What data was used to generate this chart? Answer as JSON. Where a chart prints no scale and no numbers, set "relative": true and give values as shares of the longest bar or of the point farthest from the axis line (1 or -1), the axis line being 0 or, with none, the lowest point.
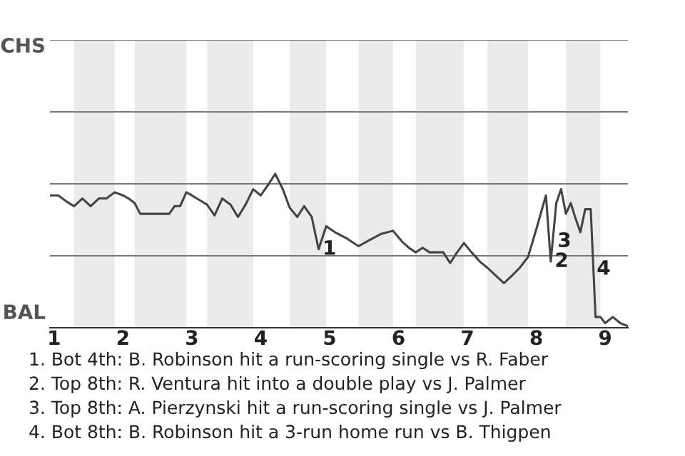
{
  "chart_data": {
    "type": "line",
    "relative": true,
    "x": [
      0.94,
      1.06,
      1.18,
      1.29,
      1.41,
      1.53,
      1.65,
      1.76,
      1.88,
      2,
      2.08,
      2.17,
      2.25,
      2.33,
      2.42,
      2.5,
      2.58,
      2.67,
      2.75,
      2.83,
      2.92,
      3,
      3.11,
      3.22,
      3.33,
      3.44,
      3.56,
      3.67,
      3.78,
      3.89,
      4,
      4.11,
      4.21,
      4.32,
      4.42,
      4.53,
      4.63,
      4.74,
      4.84,
      4.95,
      5.08,
      5.25,
      5.42,
      5.58,
      5.75,
      5.92,
      6.05,
      6.15,
      6.25,
      6.35,
      6.45,
      6.55,
      6.65,
      6.75,
      6.85,
      6.95,
      7.06,
      7.18,
      7.29,
      7.41,
      7.53,
      7.65,
      7.76,
      7.88,
      8,
      8.07,
      8.14,
      8.21,
      8.29,
      8.36,
      8.43,
      8.5,
      8.57,
      8.64,
      8.71,
      8.79,
      8.86,
      8.93,
      9,
      9.11,
      9.22,
      9.33
    ],
    "series": [
      {
        "color": "#444444",
        "values": [
          0.86,
          0.86,
          0.82,
          0.79,
          0.84,
          0.79,
          0.84,
          0.84,
          0.88,
          0.86,
          0.84,
          0.81,
          0.74,
          0.74,
          0.74,
          0.74,
          0.74,
          0.74,
          0.79,
          0.79,
          0.88,
          0.86,
          0.83,
          0.8,
          0.73,
          0.84,
          0.8,
          0.72,
          0.8,
          0.9,
          0.86,
          0.93,
          1,
          0.9,
          0.78,
          0.72,
          0.79,
          0.72,
          0.51,
          0.66,
          0.62,
          0.58,
          0.53,
          0.57,
          0.61,
          0.63,
          0.56,
          0.52,
          0.49,
          0.52,
          0.49,
          0.49,
          0.49,
          0.42,
          0.49,
          0.55,
          0.49,
          0.43,
          0.39,
          0.34,
          0.29,
          0.34,
          0.39,
          0.46,
          0.64,
          0.75,
          0.86,
          0.43,
          0.81,
          0.9,
          0.74,
          0.81,
          0.71,
          0.62,
          0.77,
          0.77,
          0.07,
          0.07,
          0.03,
          0.07,
          0.03,
          0.01
        ]
      }
    ],
    "xlim": [
      0.94,
      9.33
    ],
    "xticks": [
      1,
      2,
      3,
      4,
      5,
      6,
      7,
      8,
      9
    ],
    "ref_lines": [
      {
        "axis": "y",
        "value": 0.4675,
        "color": "#777777"
      },
      {
        "axis": "y",
        "value": 0.935,
        "color": "#777777"
      },
      {
        "axis": "y",
        "value": 1.4025,
        "color": "#777777"
      },
      {
        "axis": "y",
        "value": 1.87,
        "color": "#777777"
      }
    ],
    "bands": [
      {
        "axis": "x",
        "from": 1.29,
        "to": 1.88,
        "color": "#ebebeb"
      },
      {
        "axis": "x",
        "from": 2.17,
        "to": 2.92,
        "color": "#ebebeb"
      },
      {
        "axis": "x",
        "from": 3.22,
        "to": 3.89,
        "color": "#ebebeb"
      },
      {
        "axis": "x",
        "from": 4.42,
        "to": 4.95,
        "color": "#ebebeb"
      },
      {
        "axis": "x",
        "from": 5.42,
        "to": 5.92,
        "color": "#ebebeb"
      },
      {
        "axis": "x",
        "from": 6.25,
        "to": 6.95,
        "color": "#ebebeb"
      },
      {
        "axis": "x",
        "from": 7.29,
        "to": 7.88,
        "color": "#ebebeb"
      },
      {
        "axis": "x",
        "from": 8.43,
        "to": 8.93,
        "color": "#ebebeb"
      }
    ],
    "annotations": [
      "CHS",
      "BAL",
      {
        "text": "1",
        "x": 4.84,
        "y": 0.51
      },
      {
        "text": "2",
        "x": 8.21,
        "y": 0.43
      },
      {
        "text": "3",
        "x": 8.25,
        "y": 0.56
      },
      {
        "text": "4",
        "x": 8.82,
        "y": 0.38
      },
      "1. Bot 4th: B. Robinson hit a run-scoring single vs R. Faber",
      "2. Top 8th: R. Ventura hit into a double play vs J. Palmer",
      "3. Top 8th: A. Pierzynski hit a run-scoring single vs J. Palmer",
      "4. Bot 8th: B. Robinson hit a 3-run home run vs B. Thigpen"
    ]
  }
}
